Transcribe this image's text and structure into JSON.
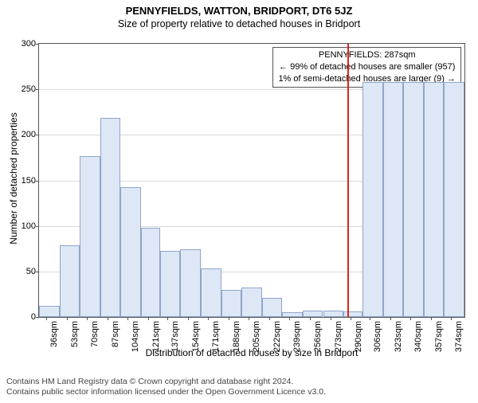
{
  "titles": {
    "main": "PENNYFIELDS, WATTON, BRIDPORT, DT6 5JZ",
    "sub": "Size of property relative to detached houses in Bridport"
  },
  "chart": {
    "type": "histogram",
    "ylabel": "Number of detached properties",
    "xlabel": "Distribution of detached houses by size in Bridport",
    "ylim": [
      0,
      300
    ],
    "ytick_step": 50,
    "background_color": "#ffffff",
    "grid_color": "#d9d9e0",
    "axis_color": "#555555",
    "bar_fill": "#dde7f6",
    "bar_stroke": "#8fa6c9",
    "highlight_color": "#d9281b",
    "highlight_x": 287,
    "xticks": [
      36,
      53,
      70,
      87,
      104,
      121,
      137,
      154,
      171,
      188,
      205,
      222,
      239,
      256,
      273,
      290,
      306,
      323,
      340,
      357,
      374
    ],
    "xtick_unit": "sqm",
    "bars": [
      {
        "x0": 30,
        "x1": 47,
        "y": 12
      },
      {
        "x0": 47,
        "x1": 64,
        "y": 79
      },
      {
        "x0": 64,
        "x1": 81,
        "y": 177
      },
      {
        "x0": 81,
        "x1": 98,
        "y": 219
      },
      {
        "x0": 98,
        "x1": 115,
        "y": 143
      },
      {
        "x0": 115,
        "x1": 131,
        "y": 98
      },
      {
        "x0": 131,
        "x1": 148,
        "y": 73
      },
      {
        "x0": 148,
        "x1": 165,
        "y": 74
      },
      {
        "x0": 165,
        "x1": 182,
        "y": 53
      },
      {
        "x0": 182,
        "x1": 199,
        "y": 30
      },
      {
        "x0": 199,
        "x1": 216,
        "y": 32
      },
      {
        "x0": 216,
        "x1": 233,
        "y": 21
      },
      {
        "x0": 233,
        "x1": 250,
        "y": 5
      },
      {
        "x0": 250,
        "x1": 267,
        "y": 7
      },
      {
        "x0": 267,
        "x1": 284,
        "y": 7
      },
      {
        "x0": 284,
        "x1": 300,
        "y": 6
      },
      {
        "x0": 300,
        "x1": 317,
        "y": 258
      },
      {
        "x0": 317,
        "x1": 334,
        "y": 258
      },
      {
        "x0": 334,
        "x1": 351,
        "y": 258
      },
      {
        "x0": 351,
        "x1": 368,
        "y": 258
      },
      {
        "x0": 368,
        "x1": 385,
        "y": 258
      }
    ],
    "xrange": [
      30,
      385
    ]
  },
  "callout": {
    "line1": "PENNYFIELDS: 287sqm",
    "line2": "← 99% of detached houses are smaller (957)",
    "line3": "1% of semi-detached houses are larger (9) →"
  },
  "footer": {
    "line1": "Contains HM Land Registry data © Crown copyright and database right 2024.",
    "line2": "Contains public sector information licensed under the Open Government Licence v3.0."
  }
}
